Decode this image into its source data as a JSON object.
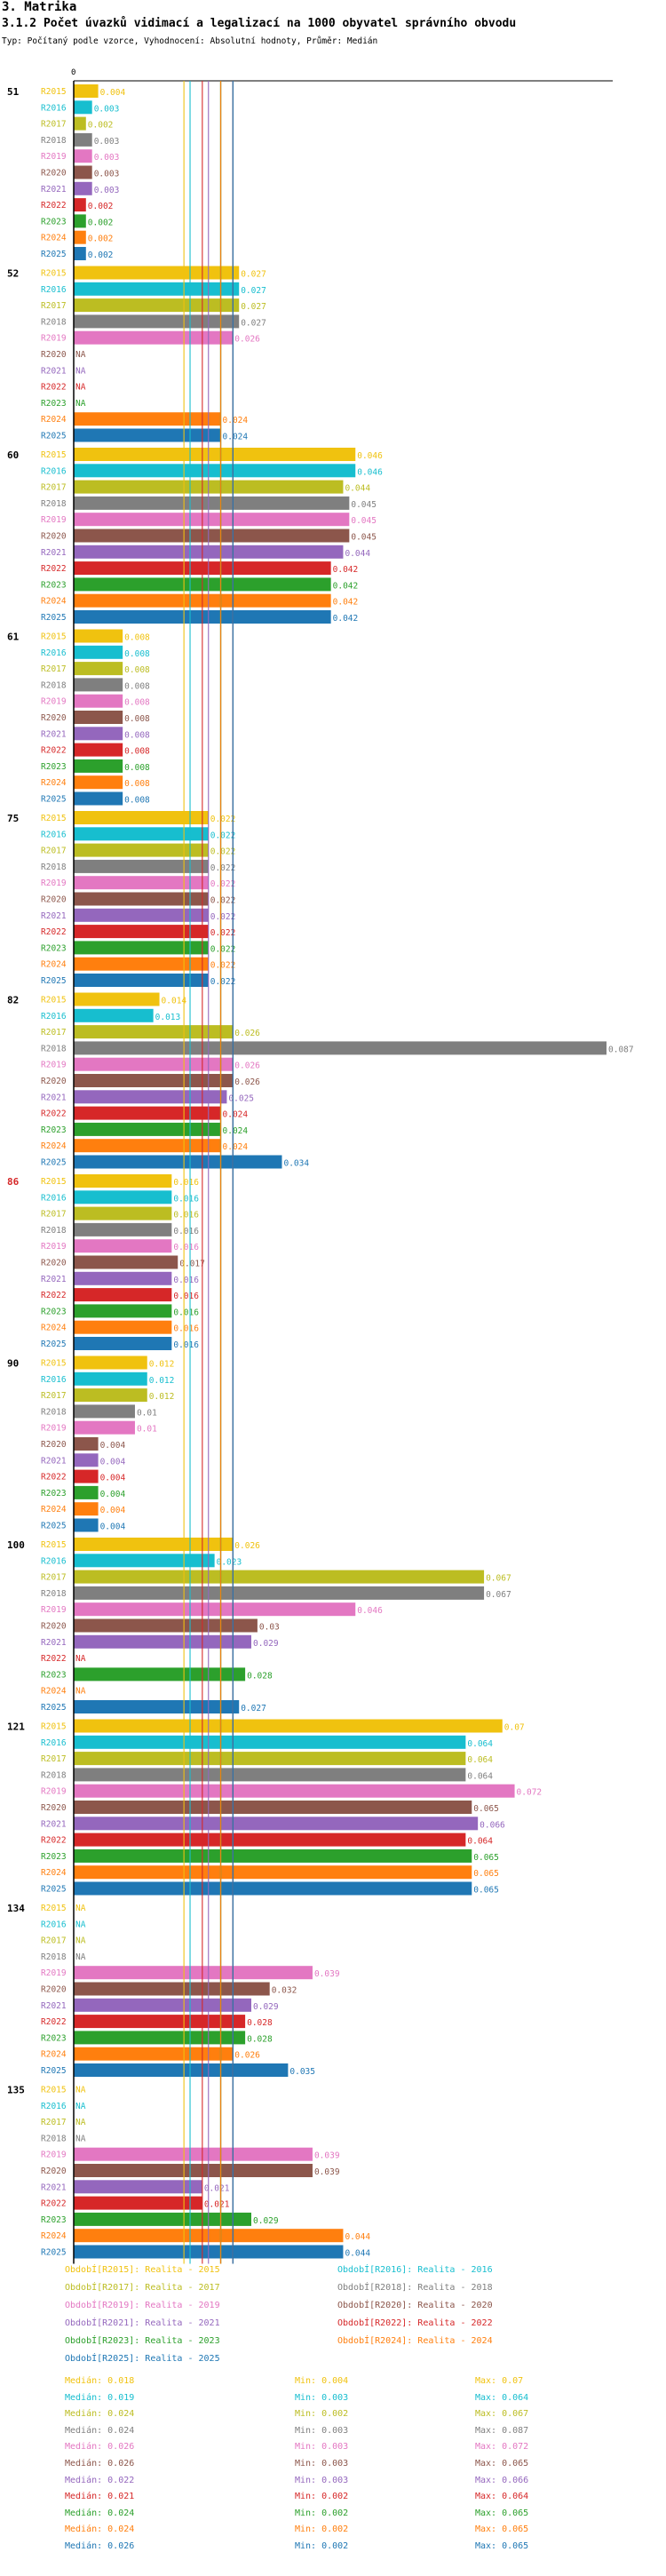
{
  "header": {
    "section": "3. Matrika",
    "title": "3.1.2 Počet úvazků vidimací a legalizací na 1000 obyvatel správního obvodu",
    "subtitle": "Typ: Počítaný podle vzorce, Vyhodnocení: Absolutní hodnoty, Průměr: Medián"
  },
  "chart_data": {
    "type": "bar",
    "orientation": "horizontal",
    "xlim": [
      0,
      0.087
    ],
    "axis_zero_label": "0",
    "na_label": "NA",
    "series": [
      {
        "key": "R2015",
        "color": "#f0c20f"
      },
      {
        "key": "R2016",
        "color": "#17becf"
      },
      {
        "key": "R2017",
        "color": "#bcbd22"
      },
      {
        "key": "R2018",
        "color": "#7f7f7f"
      },
      {
        "key": "R2019",
        "color": "#e377c2"
      },
      {
        "key": "R2020",
        "color": "#8c564b"
      },
      {
        "key": "R2021",
        "color": "#9467bd"
      },
      {
        "key": "R2022",
        "color": "#d62728"
      },
      {
        "key": "R2023",
        "color": "#2ca02c"
      },
      {
        "key": "R2024",
        "color": "#ff7f0e"
      },
      {
        "key": "R2025",
        "color": "#1f77b4"
      }
    ],
    "groups": [
      {
        "label": "51",
        "highlight": false,
        "values": [
          0.004,
          0.003,
          0.002,
          0.003,
          0.003,
          0.003,
          0.003,
          0.002,
          0.002,
          0.002,
          0.002
        ]
      },
      {
        "label": "52",
        "highlight": false,
        "values": [
          0.027,
          0.027,
          0.027,
          0.027,
          0.026,
          null,
          null,
          null,
          null,
          0.024,
          0.024
        ]
      },
      {
        "label": "60",
        "highlight": false,
        "values": [
          0.046,
          0.046,
          0.044,
          0.045,
          0.045,
          0.045,
          0.044,
          0.042,
          0.042,
          0.042,
          0.042
        ]
      },
      {
        "label": "61",
        "highlight": false,
        "values": [
          0.008,
          0.008,
          0.008,
          0.008,
          0.008,
          0.008,
          0.008,
          0.008,
          0.008,
          0.008,
          0.008
        ]
      },
      {
        "label": "75",
        "highlight": false,
        "values": [
          0.022,
          0.022,
          0.022,
          0.022,
          0.022,
          0.022,
          0.022,
          0.022,
          0.022,
          0.022,
          0.022
        ]
      },
      {
        "label": "82",
        "highlight": false,
        "values": [
          0.014,
          0.013,
          0.026,
          0.087,
          0.026,
          0.026,
          0.025,
          0.024,
          0.024,
          0.024,
          0.034
        ]
      },
      {
        "label": "86",
        "highlight": true,
        "values": [
          0.016,
          0.016,
          0.016,
          0.016,
          0.016,
          0.017,
          0.016,
          0.016,
          0.016,
          0.016,
          0.016
        ]
      },
      {
        "label": "90",
        "highlight": false,
        "values": [
          0.012,
          0.012,
          0.012,
          0.01,
          0.01,
          0.004,
          0.004,
          0.004,
          0.004,
          0.004,
          0.004
        ]
      },
      {
        "label": "100",
        "highlight": false,
        "values": [
          0.026,
          0.023,
          0.067,
          0.067,
          0.046,
          0.03,
          0.029,
          null,
          0.028,
          null,
          0.027
        ]
      },
      {
        "label": "121",
        "highlight": false,
        "values": [
          0.07,
          0.064,
          0.064,
          0.064,
          0.072,
          0.065,
          0.066,
          0.064,
          0.065,
          0.065,
          0.065
        ]
      },
      {
        "label": "134",
        "highlight": false,
        "values": [
          null,
          null,
          null,
          null,
          0.039,
          0.032,
          0.029,
          0.028,
          0.028,
          0.026,
          0.035
        ]
      },
      {
        "label": "135",
        "highlight": false,
        "values": [
          null,
          null,
          null,
          null,
          0.039,
          0.039,
          0.021,
          0.021,
          0.029,
          0.044,
          0.044
        ]
      }
    ],
    "median_lines": [
      0.018,
      0.019,
      0.024,
      0.024,
      0.026,
      0.026,
      0.022,
      0.021,
      0.024,
      0.024,
      0.026
    ]
  },
  "legend": [
    {
      "label": "ObdobÍ[R2015]: Realita - 2015",
      "color": "#f0c20f"
    },
    {
      "label": "ObdobÍ[R2016]: Realita - 2016",
      "color": "#17becf"
    },
    {
      "label": "ObdobÍ[R2017]: Realita - 2017",
      "color": "#bcbd22"
    },
    {
      "label": "ObdobÍ[R2018]: Realita - 2018",
      "color": "#7f7f7f"
    },
    {
      "label": "ObdobÍ[R2019]: Realita - 2019",
      "color": "#e377c2"
    },
    {
      "label": "ObdobÍ[R2020]: Realita - 2020",
      "color": "#8c564b"
    },
    {
      "label": "ObdobÍ[R2021]: Realita - 2021",
      "color": "#9467bd"
    },
    {
      "label": "ObdobÍ[R2022]: Realita - 2022",
      "color": "#d62728"
    },
    {
      "label": "ObdobÍ[R2023]: Realita - 2023",
      "color": "#2ca02c"
    },
    {
      "label": "ObdobÍ[R2024]: Realita - 2024",
      "color": "#ff7f0e"
    },
    {
      "label": "ObdobÍ[R2025]: Realita - 2025",
      "color": "#1f77b4"
    }
  ],
  "stats": [
    {
      "median": "Medián: 0.018",
      "min": "Min: 0.004",
      "max": "Max: 0.07",
      "color": "#f0c20f"
    },
    {
      "median": "Medián: 0.019",
      "min": "Min: 0.003",
      "max": "Max: 0.064",
      "color": "#17becf"
    },
    {
      "median": "Medián: 0.024",
      "min": "Min: 0.002",
      "max": "Max: 0.067",
      "color": "#bcbd22"
    },
    {
      "median": "Medián: 0.024",
      "min": "Min: 0.003",
      "max": "Max: 0.087",
      "color": "#7f7f7f"
    },
    {
      "median": "Medián: 0.026",
      "min": "Min: 0.003",
      "max": "Max: 0.072",
      "color": "#e377c2"
    },
    {
      "median": "Medián: 0.026",
      "min": "Min: 0.003",
      "max": "Max: 0.065",
      "color": "#8c564b"
    },
    {
      "median": "Medián: 0.022",
      "min": "Min: 0.003",
      "max": "Max: 0.066",
      "color": "#9467bd"
    },
    {
      "median": "Medián: 0.021",
      "min": "Min: 0.002",
      "max": "Max: 0.064",
      "color": "#d62728"
    },
    {
      "median": "Medián: 0.024",
      "min": "Min: 0.002",
      "max": "Max: 0.065",
      "color": "#2ca02c"
    },
    {
      "median": "Medián: 0.024",
      "min": "Min: 0.002",
      "max": "Max: 0.065",
      "color": "#ff7f0e"
    },
    {
      "median": "Medián: 0.026",
      "min": "Min: 0.002",
      "max": "Max: 0.065",
      "color": "#1f77b4"
    }
  ]
}
